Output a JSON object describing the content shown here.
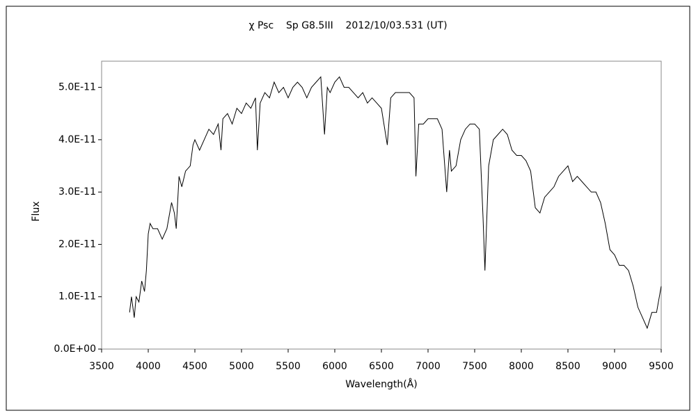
{
  "chart_data": {
    "type": "line",
    "title": "χ Psc    Sp G8.5III    2012/10/03.531 (UT)",
    "x_label": "Wavelength(Å)",
    "y_label": "Flux",
    "x": [
      3800,
      3820,
      3850,
      3870,
      3900,
      3930,
      3960,
      3980,
      4000,
      4020,
      4050,
      4100,
      4150,
      4200,
      4250,
      4280,
      4300,
      4330,
      4360,
      4400,
      4450,
      4480,
      4500,
      4550,
      4600,
      4650,
      4700,
      4750,
      4780,
      4800,
      4850,
      4900,
      4950,
      5000,
      5050,
      5100,
      5150,
      5170,
      5200,
      5250,
      5300,
      5350,
      5400,
      5450,
      5500,
      5550,
      5600,
      5650,
      5700,
      5750,
      5800,
      5850,
      5890,
      5920,
      5950,
      6000,
      6050,
      6100,
      6150,
      6200,
      6250,
      6300,
      6350,
      6400,
      6450,
      6500,
      6563,
      6600,
      6650,
      6700,
      6750,
      6800,
      6850,
      6870,
      6900,
      6950,
      7000,
      7050,
      7100,
      7150,
      7200,
      7230,
      7250,
      7300,
      7350,
      7400,
      7450,
      7500,
      7550,
      7590,
      7610,
      7650,
      7700,
      7750,
      7800,
      7850,
      7900,
      7950,
      8000,
      8050,
      8100,
      8150,
      8200,
      8250,
      8300,
      8350,
      8400,
      8450,
      8500,
      8550,
      8600,
      8650,
      8700,
      8750,
      8800,
      8850,
      8900,
      8950,
      9000,
      9050,
      9100,
      9150,
      9200,
      9250,
      9300,
      9350,
      9400,
      9450,
      9500
    ],
    "series": [
      {
        "color": "#000000",
        "values": [
          7e-12,
          1e-11,
          6e-12,
          1e-11,
          9e-12,
          1.3e-11,
          1.1e-11,
          1.5e-11,
          2.2e-11,
          2.4e-11,
          2.3e-11,
          2.3e-11,
          2.1e-11,
          2.3e-11,
          2.8e-11,
          2.6e-11,
          2.3e-11,
          3.3e-11,
          3.1e-11,
          3.4e-11,
          3.5e-11,
          3.9e-11,
          4e-11,
          3.8e-11,
          4e-11,
          4.2e-11,
          4.1e-11,
          4.3e-11,
          3.8e-11,
          4.4e-11,
          4.5e-11,
          4.3e-11,
          4.6e-11,
          4.5e-11,
          4.7e-11,
          4.6e-11,
          4.8e-11,
          3.8e-11,
          4.7e-11,
          4.9e-11,
          4.8e-11,
          5.1e-11,
          4.9e-11,
          5e-11,
          4.8e-11,
          5e-11,
          5.1e-11,
          5e-11,
          4.8e-11,
          5e-11,
          5.1e-11,
          5.2e-11,
          4.1e-11,
          5e-11,
          4.9e-11,
          5.1e-11,
          5.2e-11,
          5e-11,
          5e-11,
          4.9e-11,
          4.8e-11,
          4.9e-11,
          4.7e-11,
          4.8e-11,
          4.7e-11,
          4.6e-11,
          3.9e-11,
          4.8e-11,
          4.9e-11,
          4.9e-11,
          4.9e-11,
          4.9e-11,
          4.8e-11,
          3.3e-11,
          4.3e-11,
          4.3e-11,
          4.4e-11,
          4.4e-11,
          4.4e-11,
          4.2e-11,
          3e-11,
          3.8e-11,
          3.4e-11,
          3.5e-11,
          4e-11,
          4.2e-11,
          4.3e-11,
          4.3e-11,
          4.2e-11,
          2.5e-11,
          1.5e-11,
          3.5e-11,
          4e-11,
          4.1e-11,
          4.2e-11,
          4.1e-11,
          3.8e-11,
          3.7e-11,
          3.7e-11,
          3.6e-11,
          3.4e-11,
          2.7e-11,
          2.6e-11,
          2.9e-11,
          3e-11,
          3.1e-11,
          3.3e-11,
          3.4e-11,
          3.5e-11,
          3.2e-11,
          3.3e-11,
          3.2e-11,
          3.1e-11,
          3e-11,
          3e-11,
          2.8e-11,
          2.4e-11,
          1.9e-11,
          1.8e-11,
          1.6e-11,
          1.6e-11,
          1.5e-11,
          1.2e-11,
          8e-12,
          6e-12,
          4e-12,
          7e-12,
          7e-12,
          1.2e-11
        ]
      }
    ],
    "xlim": [
      3500,
      9500
    ],
    "xticks": [
      3500,
      4000,
      4500,
      5000,
      5500,
      6000,
      6500,
      7000,
      7500,
      8000,
      8500,
      9000,
      9500
    ],
    "ylim": [
      0,
      5.5e-11
    ],
    "yticks": [
      {
        "value": 0,
        "label": "0.0E+00"
      },
      {
        "value": 1e-11,
        "label": "1.0E-11"
      },
      {
        "value": 2e-11,
        "label": "2.0E-11"
      },
      {
        "value": 3e-11,
        "label": "3.0E-11"
      },
      {
        "value": 4e-11,
        "label": "4.0E-11"
      },
      {
        "value": 5e-11,
        "label": "5.0E-11"
      }
    ],
    "grid": false
  }
}
